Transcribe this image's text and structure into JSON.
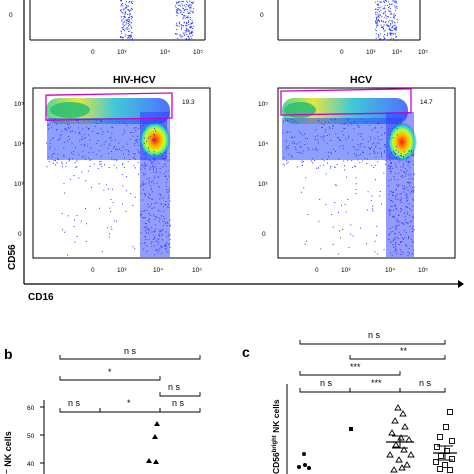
{
  "axes": {
    "x_label": "CD16",
    "y_label": "CD56"
  },
  "top_ticks": [
    "0",
    "10³",
    "10⁴",
    "10⁵"
  ],
  "flow_panels": [
    {
      "title": "HIV-HCV",
      "gate_percent": "19.3",
      "y_ticks": [
        "10⁵",
        "10⁴",
        "10³",
        "0"
      ],
      "x_ticks": [
        "0",
        "10³",
        "10⁴",
        "10⁵"
      ]
    },
    {
      "title": "HCV",
      "gate_percent": "14.7",
      "y_ticks": [
        "10⁵",
        "10⁴",
        "10³",
        "0"
      ],
      "x_ticks": [
        "0",
        "10³",
        "10⁴",
        "10⁵"
      ]
    }
  ],
  "panel_b": {
    "letter": "b",
    "ylabel_fragment": "⁻ NK cells",
    "y_ticks": [
      "60",
      "50",
      "40"
    ],
    "brackets": [
      "n s",
      "*",
      "n s",
      "n s",
      "*",
      "n s"
    ]
  },
  "panel_c": {
    "letter": "c",
    "ylabel_main": "CD56",
    "ylabel_sup": "bright",
    "ylabel_tail": " NK cells",
    "brackets": [
      "n s",
      "**",
      "***",
      "n s",
      "***",
      "n s"
    ]
  },
  "colors": {
    "gate": "#d100c8",
    "density_low": "#1a2aff",
    "density_mid": "#19d6a0",
    "density_high": "#ff2200"
  }
}
